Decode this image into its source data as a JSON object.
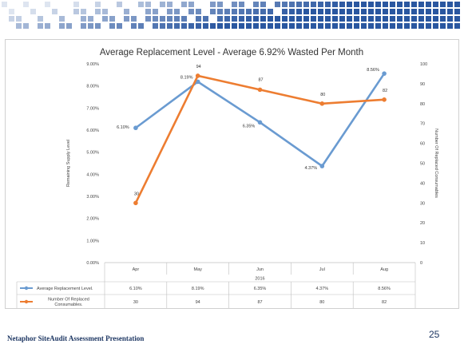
{
  "slide": {
    "footer": "Netaphor SiteAudit Assessment Presentation",
    "page_number": "25",
    "colors": {
      "banner": "#1f4e9b",
      "footer_text": "#1f3864"
    }
  },
  "chart_data": {
    "type": "line",
    "title": "Average Replacement Level - Average 6.92% Wasted Per Month",
    "categories": [
      "Apr",
      "May",
      "Jun",
      "Jul",
      "Aug"
    ],
    "xlabel": "2016",
    "ylabel": "Remaining Supply Level",
    "y2label": "Number Of Replaced Consumables",
    "ylim": [
      0,
      9
    ],
    "y_ticks": [
      "0.00%",
      "1.00%",
      "2.00%",
      "3.00%",
      "4.00%",
      "5.00%",
      "6.00%",
      "7.00%",
      "8.00%",
      "9.00%"
    ],
    "y2lim": [
      0,
      100
    ],
    "y2_ticks": [
      "0",
      "10",
      "20",
      "30",
      "40",
      "50",
      "60",
      "70",
      "80",
      "90",
      "100"
    ],
    "grid": false,
    "series": [
      {
        "name": "Average Replacement Level.",
        "axis": "left",
        "values": [
          6.1,
          8.19,
          6.35,
          4.37,
          8.56
        ],
        "labels": [
          "6.10%",
          "8.19%",
          "6.35%",
          "4.37%",
          "8.56%"
        ],
        "color": "#6a9bd1"
      },
      {
        "name": "Number Of Replaced Consumables.",
        "axis": "right",
        "values": [
          30,
          94,
          87,
          80,
          82
        ],
        "labels": [
          "30",
          "94",
          "87",
          "80",
          "82"
        ],
        "color": "#ed7d31"
      }
    ],
    "legend": "data-table"
  }
}
